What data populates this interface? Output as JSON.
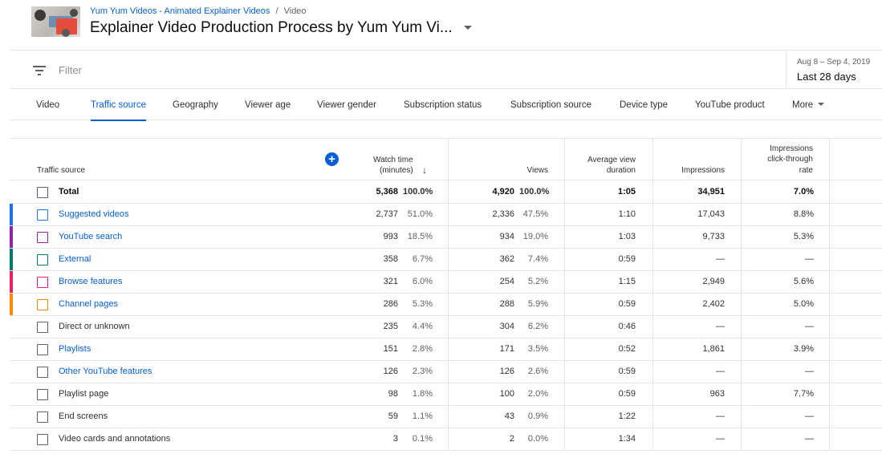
{
  "header": {
    "breadcrumb_channel": "Yum Yum Videos - Animated Explainer Videos",
    "breadcrumb_sep": "/",
    "breadcrumb_current": "Video",
    "title": "Explainer Video Production Process by Yum Yum Vi..."
  },
  "filter": {
    "placeholder": "Filter"
  },
  "date": {
    "range": "Aug 8 – Sep 4, 2019",
    "label": "Last 28 days"
  },
  "tabs": [
    {
      "label": "Video"
    },
    {
      "label": "Traffic source"
    },
    {
      "label": "Geography"
    },
    {
      "label": "Viewer age"
    },
    {
      "label": "Viewer gender"
    },
    {
      "label": "Subscription status"
    },
    {
      "label": "Subscription source"
    },
    {
      "label": "Device type"
    },
    {
      "label": "YouTube product"
    },
    {
      "label": "More"
    }
  ],
  "table": {
    "headers": {
      "source": "Traffic source",
      "watch_time_1": "Watch time",
      "watch_time_2": "(minutes)",
      "views": "Views",
      "avd_1": "Average view",
      "avd_2": "duration",
      "impressions": "Impressions",
      "ctr_1": "Impressions",
      "ctr_2": "click-through",
      "ctr_3": "rate"
    },
    "rows": [
      {
        "label": "Total",
        "watch_time": "5,368",
        "watch_pct": "100.0%",
        "views": "4,920",
        "views_pct": "100.0%",
        "avd": "1:05",
        "impressions": "34,951",
        "ctr": "7.0%",
        "color": "",
        "link": false
      },
      {
        "label": "Suggested videos",
        "watch_time": "2,737",
        "watch_pct": "51.0%",
        "views": "2,336",
        "views_pct": "47.5%",
        "avd": "1:10",
        "impressions": "17,043",
        "ctr": "8.8%",
        "color": "#1a73e8",
        "link": true
      },
      {
        "label": "YouTube search",
        "watch_time": "993",
        "watch_pct": "18.5%",
        "views": "934",
        "views_pct": "19.0%",
        "avd": "1:03",
        "impressions": "9,733",
        "ctr": "5.3%",
        "color": "#8e24aa",
        "link": true
      },
      {
        "label": "External",
        "watch_time": "358",
        "watch_pct": "6.7%",
        "views": "362",
        "views_pct": "7.4%",
        "avd": "0:59",
        "impressions": "—",
        "ctr": "—",
        "color": "#00796b",
        "link": true
      },
      {
        "label": "Browse features",
        "watch_time": "321",
        "watch_pct": "6.0%",
        "views": "254",
        "views_pct": "5.2%",
        "avd": "1:15",
        "impressions": "2,949",
        "ctr": "5.6%",
        "color": "#e91e63",
        "link": true
      },
      {
        "label": "Channel pages",
        "watch_time": "286",
        "watch_pct": "5.3%",
        "views": "288",
        "views_pct": "5.9%",
        "avd": "0:59",
        "impressions": "2,402",
        "ctr": "5.0%",
        "color": "#fb8c00",
        "link": true
      },
      {
        "label": "Direct or unknown",
        "watch_time": "235",
        "watch_pct": "4.4%",
        "views": "304",
        "views_pct": "6.2%",
        "avd": "0:46",
        "impressions": "—",
        "ctr": "—",
        "color": "",
        "link": false
      },
      {
        "label": "Playlists",
        "watch_time": "151",
        "watch_pct": "2.8%",
        "views": "171",
        "views_pct": "3.5%",
        "avd": "0:52",
        "impressions": "1,861",
        "ctr": "3.9%",
        "color": "",
        "link": true
      },
      {
        "label": "Other YouTube features",
        "watch_time": "126",
        "watch_pct": "2.3%",
        "views": "126",
        "views_pct": "2.6%",
        "avd": "0:59",
        "impressions": "—",
        "ctr": "—",
        "color": "",
        "link": true
      },
      {
        "label": "Playlist page",
        "watch_time": "98",
        "watch_pct": "1.8%",
        "views": "100",
        "views_pct": "2.0%",
        "avd": "0:59",
        "impressions": "963",
        "ctr": "7.7%",
        "color": "",
        "link": false
      },
      {
        "label": "End screens",
        "watch_time": "59",
        "watch_pct": "1.1%",
        "views": "43",
        "views_pct": "0.9%",
        "avd": "1:22",
        "impressions": "—",
        "ctr": "—",
        "color": "",
        "link": false
      },
      {
        "label": "Video cards and annotations",
        "watch_time": "3",
        "watch_pct": "0.1%",
        "views": "2",
        "views_pct": "0.0%",
        "avd": "1:34",
        "impressions": "—",
        "ctr": "—",
        "color": "",
        "link": false
      }
    ]
  },
  "colors": {
    "accent": "#065fd4",
    "add_button": "#065fd4"
  },
  "icons": {
    "filter": "filter-lines-icon",
    "add_metric": "plus-circle-icon",
    "sort": "arrow-down-icon",
    "title_dropdown": "caret-down-icon",
    "more_dropdown": "caret-down-icon"
  }
}
